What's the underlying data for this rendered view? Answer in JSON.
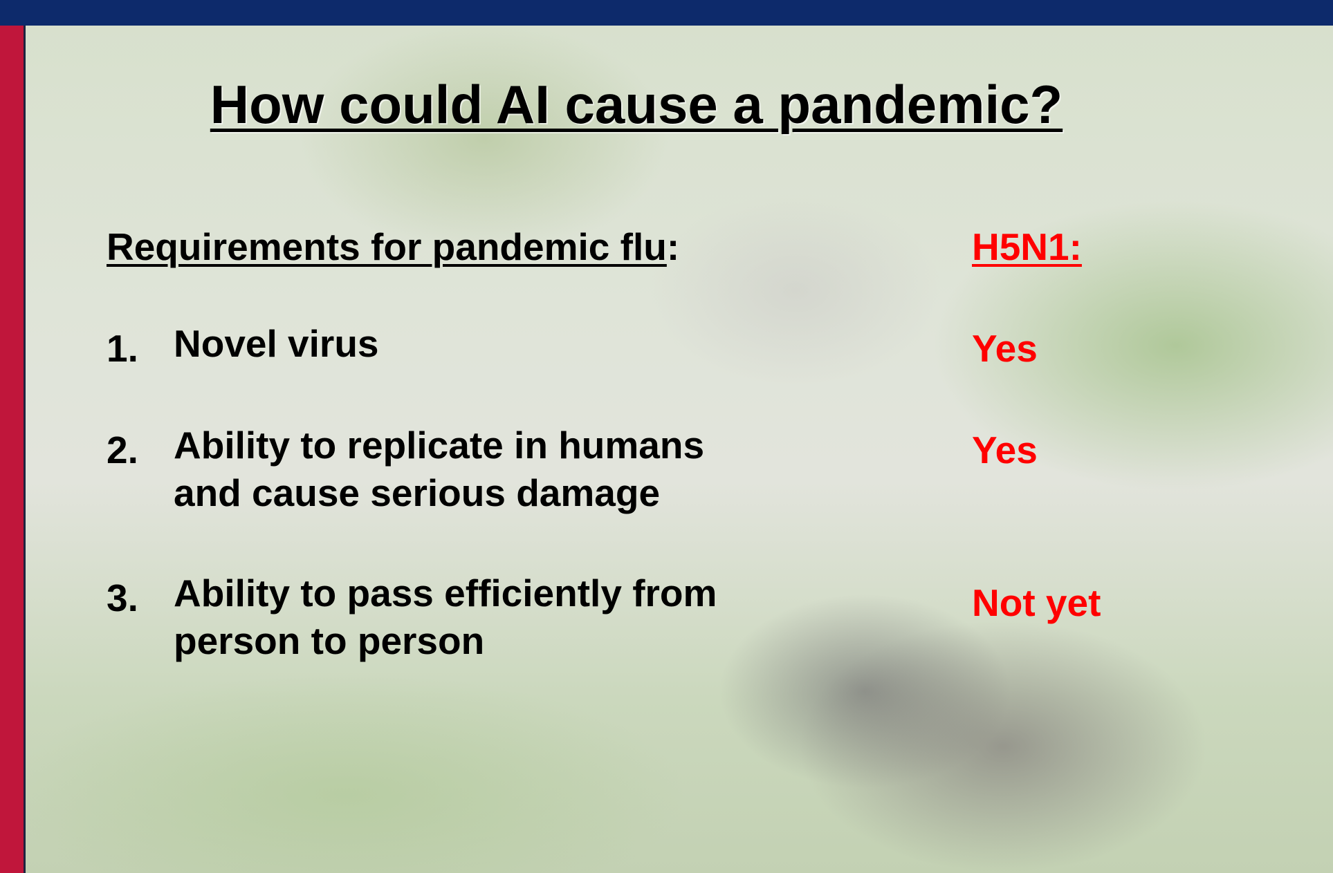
{
  "title": "How could AI cause a pandemic?",
  "left_header": {
    "text": "Requirements for pandemic flu",
    "suffix": ":"
  },
  "right_header": "H5N1:",
  "items": [
    {
      "number": "1.",
      "lines": [
        "Novel virus"
      ],
      "answer": "Yes"
    },
    {
      "number": "2.",
      "lines": [
        "Ability to replicate in humans",
        "and cause serious damage"
      ],
      "answer": "Yes"
    },
    {
      "number": "3.",
      "lines": [
        "Ability to pass efficiently from",
        "person to person"
      ],
      "answer": "Not yet"
    }
  ]
}
